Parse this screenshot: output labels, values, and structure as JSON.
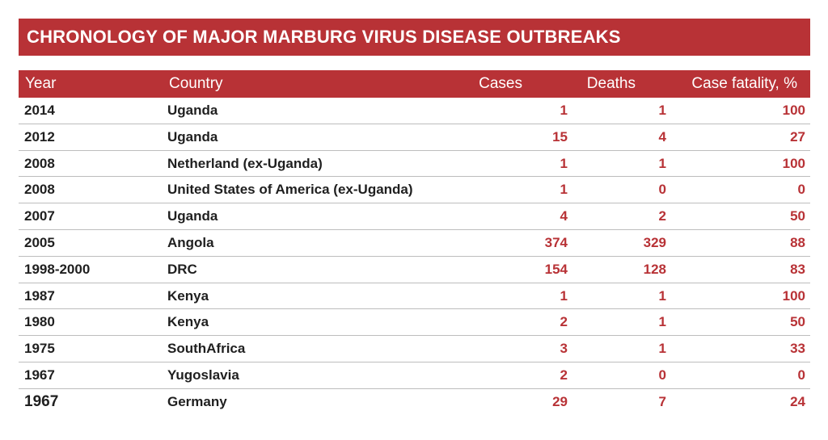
{
  "title": "CHRONOLOGY OF MAJOR MARBURG VIRUS DISEASE OUTBREAKS",
  "colors": {
    "accent": "#b83236",
    "text": "#1f1f1f",
    "divider": "#bdbdbd"
  },
  "chart_data": {
    "type": "table",
    "title": "CHRONOLOGY OF MAJOR MARBURG VIRUS DISEASE OUTBREAKS",
    "columns": [
      "Year",
      "Country",
      "Cases",
      "Deaths",
      "Case fatality, %"
    ],
    "rows": [
      [
        "2014",
        "Uganda",
        "1",
        "1",
        "100"
      ],
      [
        "2012",
        "Uganda",
        "15",
        "4",
        "27"
      ],
      [
        "2008",
        "Netherland (ex-Uganda)",
        "1",
        "1",
        "100"
      ],
      [
        "2008",
        "United States of America (ex-Uganda)",
        "1",
        "0",
        "0"
      ],
      [
        "2007",
        "Uganda",
        "4",
        "2",
        "50"
      ],
      [
        "2005",
        "Angola",
        "374",
        "329",
        "88"
      ],
      [
        "1998-2000",
        "DRC",
        "154",
        "128",
        "83"
      ],
      [
        "1987",
        "Kenya",
        "1",
        "1",
        "100"
      ],
      [
        "1980",
        "Kenya",
        "2",
        "1",
        "50"
      ],
      [
        "1975",
        "SouthAfrica",
        "3",
        "1",
        "33"
      ],
      [
        "1967",
        "Yugoslavia",
        "2",
        "0",
        "0"
      ],
      [
        "1967",
        "Germany",
        "29",
        "7",
        "24"
      ]
    ]
  }
}
